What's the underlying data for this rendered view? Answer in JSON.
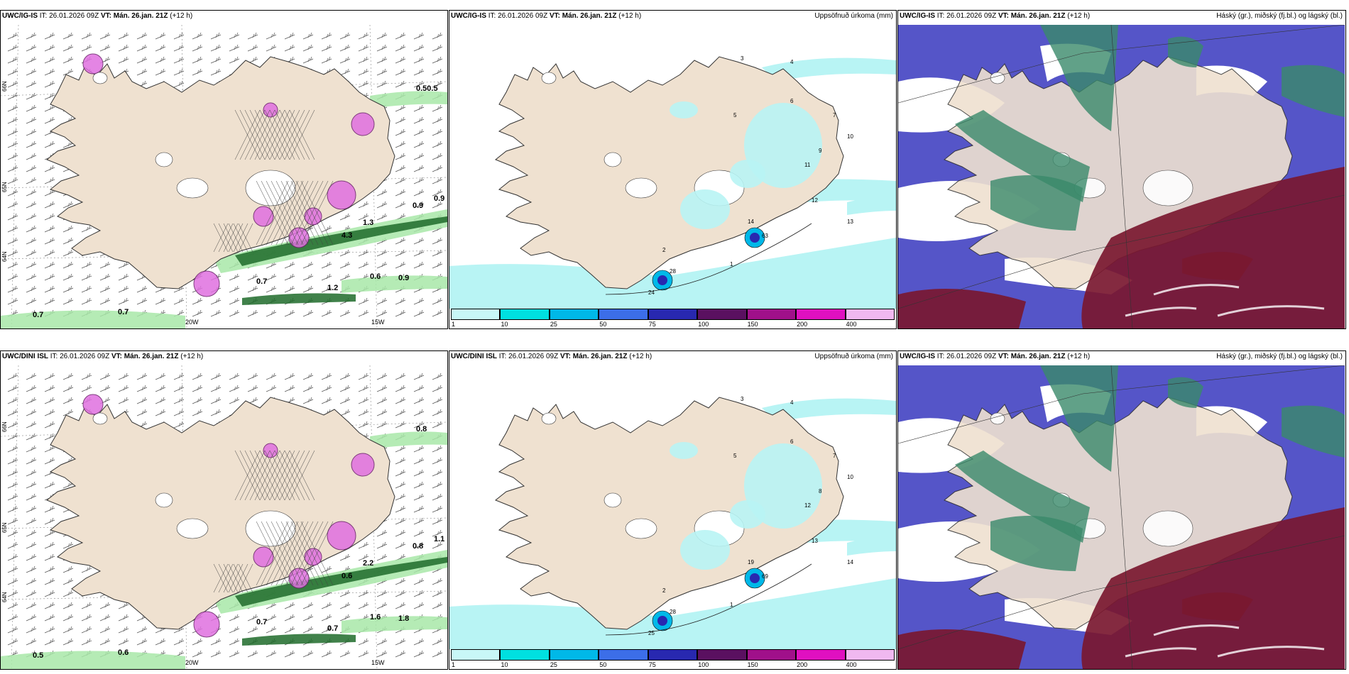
{
  "colors": {
    "land": "#efe1d0",
    "ocean": "#ffffff",
    "precip_light": "#b8f4f4",
    "high_cloud": "#3a8a6a",
    "mid_cloud": "#5555c8",
    "low_cloud": "#7a1830",
    "wind_green": "#a8e8a8",
    "wind_dark": "#1e6b2a",
    "pink": "#e070e0"
  },
  "panels": [
    {
      "id": "p1",
      "model": "UWC/IG-IS",
      "it_label": "IT:",
      "it": "26.01.2026 09Z",
      "vt_label": "VT:",
      "vt": "Mán. 26.jan. 21Z",
      "lead": "(+12 h)",
      "title_right": "",
      "lon_labels": [
        "20W",
        "15W"
      ],
      "lat_labels": [
        "66N",
        "65N",
        "64N"
      ],
      "values": [
        "0.7",
        "0.7",
        "0.9",
        "0.9",
        "1.2",
        "1.3",
        "4.3",
        "0.50.5",
        "0.9",
        "0.7",
        "0.6"
      ]
    },
    {
      "id": "p2",
      "model": "UWC/IG-IS",
      "it_label": "IT:",
      "it": "26.01.2026 09Z",
      "vt_label": "VT:",
      "vt": "Mán. 26.jan. 21Z",
      "lead": "(+12 h)",
      "title_right": "Uppsöfnuð úrkoma (mm)",
      "values": [
        "1",
        "2",
        "3",
        "4",
        "5",
        "6",
        "7",
        "9",
        "10",
        "11",
        "12",
        "13",
        "14",
        "24",
        "28",
        "63"
      ]
    },
    {
      "id": "p3",
      "model": "UWC/IG-IS",
      "it_label": "IT:",
      "it": "26.01.2026 09Z",
      "vt_label": "VT:",
      "vt": "Mán. 26.jan. 21Z",
      "lead": "(+12 h)",
      "title_right": "Háský (gr.), miðský (fj.bl.) og lágský (bl.)"
    },
    {
      "id": "p4",
      "model": "UWC/DINI ISL",
      "it_label": "IT:",
      "it": "26.01.2026 09Z",
      "vt_label": "VT:",
      "vt": "Mán. 26.jan. 21Z",
      "lead": "(+12 h)",
      "title_right": "",
      "lon_labels": [
        "20W",
        "15W"
      ],
      "lat_labels": [
        "66N",
        "65N",
        "64N"
      ],
      "values": [
        "0.5",
        "0.6",
        "0.8",
        "1.1",
        "0.7",
        "2.2",
        "0.6",
        "0.8",
        "1.8",
        "0.7",
        "1.6"
      ]
    },
    {
      "id": "p5",
      "model": "UWC/DINI ISL",
      "it_label": "IT:",
      "it": "26.01.2026 09Z",
      "vt_label": "VT:",
      "vt": "Mán. 26.jan. 21Z",
      "lead": "(+12 h)",
      "title_right": "Uppsöfnuð úrkoma (mm)",
      "values": [
        "1",
        "2",
        "3",
        "4",
        "5",
        "6",
        "7",
        "8",
        "10",
        "12",
        "13",
        "14",
        "19",
        "25",
        "28",
        "69"
      ]
    },
    {
      "id": "p6",
      "model": "UWC/IG-IS",
      "it_label": "IT:",
      "it": "26.01.2026 09Z",
      "vt_label": "VT:",
      "vt": "Mán. 26.jan. 21Z",
      "lead": "(+12 h)",
      "title_right": "Háský (gr.), miðský (fj.bl.) og lágský (bl.)"
    }
  ],
  "colorbar": {
    "ticks": [
      "1",
      "10",
      "25",
      "50",
      "75",
      "100",
      "150",
      "200",
      "400"
    ],
    "colors": [
      "#c8f7f7",
      "#00e0e0",
      "#00b8e8",
      "#3c6ee8",
      "#2828b0",
      "#5a1060",
      "#a0108a",
      "#e010c0",
      "#f0b8f0"
    ]
  }
}
